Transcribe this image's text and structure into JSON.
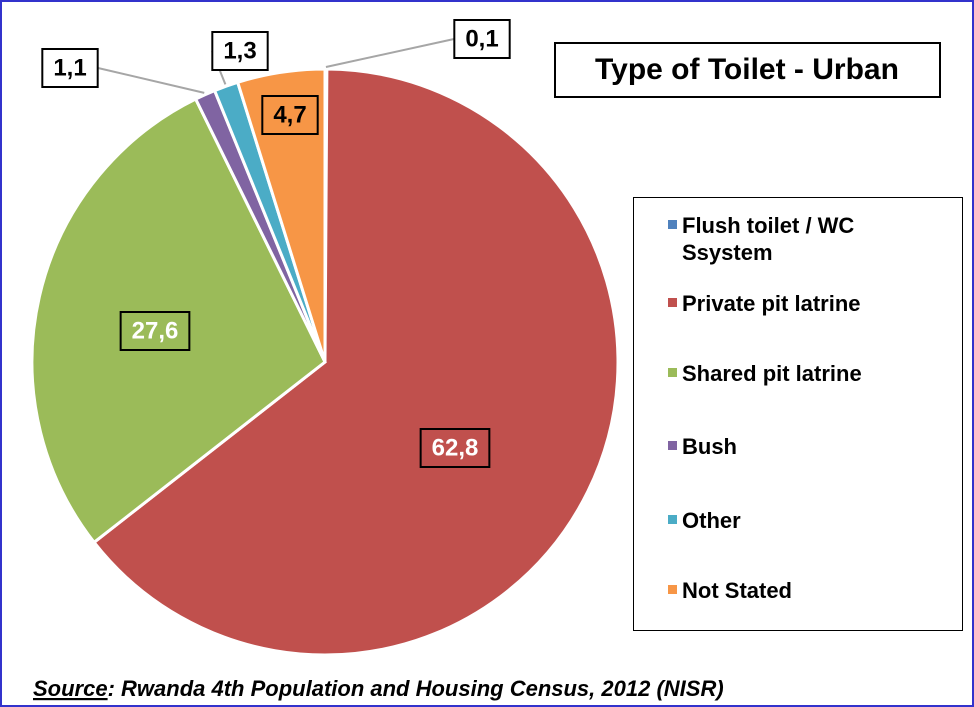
{
  "chart_data": {
    "type": "pie",
    "title": "Type of Toilet - Urban",
    "categories": [
      "Flush toilet / WC Ssystem",
      "Private pit latrine",
      "Shared pit latrine",
      "Bush",
      "Other",
      "Not Stated"
    ],
    "values": [
      0.1,
      62.8,
      27.6,
      1.1,
      1.3,
      4.7
    ],
    "value_labels": [
      "0,1",
      "62,8",
      "27,6",
      "1,1",
      "1,3",
      "4,7"
    ],
    "colors": [
      "#4f81bd",
      "#c0504d",
      "#9bbb59",
      "#8064a2",
      "#4bacc6",
      "#f79646"
    ],
    "source_label": "Source",
    "source_text": ": Rwanda 4th Population and Housing Census, 2012 (NISR)"
  }
}
